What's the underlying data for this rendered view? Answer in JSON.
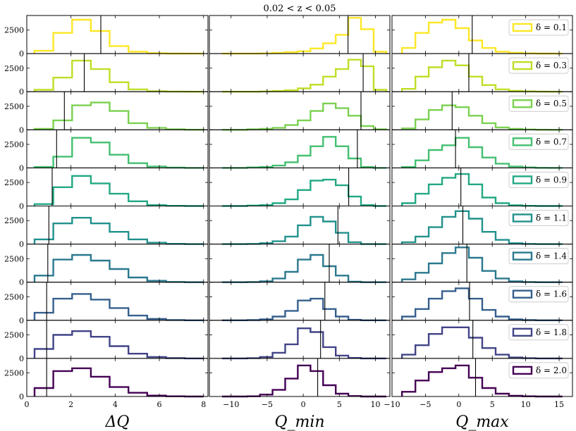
{
  "figure": {
    "title": "0.02 < z < 0.05"
  },
  "chart_data": {
    "type": "histogram-grid",
    "title": "0.02 < z < 0.05",
    "rows": [
      "δ = 0.1",
      "δ = 0.3",
      "δ = 0.5",
      "δ = 0.7",
      "δ = 0.9",
      "δ = 1.1",
      "δ = 1.4",
      "δ = 1.6",
      "δ = 1.8",
      "δ = 2.0"
    ],
    "row_colors": [
      "#fde725",
      "#bddf26",
      "#7ad151",
      "#44bf70",
      "#22a884",
      "#21918c",
      "#2a788e",
      "#355f8d",
      "#414487",
      "#440154"
    ],
    "y_ticks": [
      0,
      2500
    ],
    "panels": [
      {
        "xlabel": "ΔQ",
        "xlim": [
          0,
          8.2
        ],
        "x_ticks": [
          0,
          2,
          4,
          6,
          8
        ],
        "edges": [
          0.35,
          1.2,
          2.05,
          2.9,
          3.75,
          4.6,
          5.45,
          6.3,
          7.15,
          8.0
        ],
        "counts": [
          [
            300,
            2200,
            3600,
            2400,
            800,
            200,
            50,
            10,
            0
          ],
          [
            200,
            1500,
            3300,
            2400,
            1000,
            250,
            60,
            10,
            0
          ],
          [
            100,
            1000,
            2600,
            2900,
            2000,
            700,
            200,
            50,
            10
          ],
          [
            100,
            1200,
            3200,
            2700,
            1400,
            500,
            150,
            30,
            0
          ],
          [
            200,
            2000,
            3200,
            2400,
            1300,
            500,
            100,
            20,
            0
          ],
          [
            500,
            2200,
            2800,
            2200,
            1300,
            500,
            150,
            30,
            0
          ],
          [
            700,
            2400,
            2900,
            2300,
            1400,
            500,
            150,
            30,
            0
          ],
          [
            800,
            2300,
            2800,
            2200,
            1300,
            500,
            150,
            30,
            0
          ],
          [
            1000,
            2500,
            2900,
            2300,
            1300,
            500,
            150,
            30,
            0
          ],
          [
            900,
            2700,
            3000,
            2100,
            1000,
            400,
            100,
            20,
            0
          ]
        ],
        "medians": [
          3.35,
          2.6,
          1.7,
          1.35,
          1.15,
          1.0,
          0.95,
          0.9,
          0.9,
          0.9
        ]
      },
      {
        "xlabel": "Q_min",
        "xlim": [
          -13,
          12
        ],
        "x_ticks": [
          -10,
          -5,
          0,
          5,
          10
        ],
        "edges": [
          -11.25,
          -9.5,
          -7.75,
          -6.0,
          -4.25,
          -2.5,
          -0.75,
          1.0,
          2.75,
          4.5,
          6.25,
          8.0,
          9.75,
          11.5
        ],
        "counts": [
          [
            0,
            0,
            0,
            20,
            80,
            150,
            250,
            550,
            1100,
            2000,
            3800,
            2600,
            200
          ],
          [
            0,
            0,
            0,
            30,
            80,
            150,
            350,
            750,
            1600,
            2400,
            3400,
            2700,
            200
          ],
          [
            0,
            0,
            50,
            100,
            200,
            500,
            1000,
            2000,
            2800,
            2300,
            1500,
            400,
            50
          ],
          [
            0,
            0,
            50,
            100,
            250,
            600,
            1300,
            2300,
            3300,
            2300,
            1000,
            100,
            0
          ],
          [
            0,
            0,
            50,
            100,
            300,
            700,
            1700,
            2700,
            2800,
            2200,
            1000,
            100,
            0
          ],
          [
            0,
            0,
            20,
            100,
            300,
            800,
            2000,
            2900,
            2400,
            1200,
            200,
            0,
            0
          ],
          [
            0,
            0,
            20,
            100,
            400,
            1100,
            2400,
            2900,
            1700,
            700,
            50,
            0,
            0
          ],
          [
            0,
            0,
            20,
            100,
            400,
            1000,
            2100,
            2300,
            1200,
            400,
            50,
            0,
            0
          ],
          [
            0,
            0,
            20,
            150,
            600,
            1500,
            3200,
            2800,
            1200,
            300,
            50,
            0,
            0
          ],
          [
            0,
            0,
            20,
            200,
            700,
            1900,
            3300,
            2700,
            1200,
            300,
            50,
            0,
            0
          ]
        ],
        "medians": [
          6.2,
          8.3,
          8.0,
          7.5,
          6.3,
          4.8,
          3.6,
          3.0,
          2.4,
          2.0
        ]
      },
      {
        "xlabel": "Q_max",
        "xlim": [
          -10,
          17
        ],
        "x_ticks": [
          -10,
          -5,
          0,
          5,
          10,
          15
        ],
        "edges": [
          -8.5,
          -6.5,
          -4.5,
          -2.5,
          -0.5,
          1.5,
          3.5,
          5.5,
          7.5,
          9.5,
          11.5,
          13.5,
          15.5
        ],
        "counts": [
          [
            600,
            2200,
            3300,
            3600,
            2700,
            1400,
            600,
            200,
            80,
            30,
            10,
            0
          ],
          [
            300,
            1600,
            2600,
            3300,
            2800,
            1600,
            700,
            250,
            100,
            40,
            10,
            0
          ],
          [
            150,
            1100,
            2100,
            2600,
            2400,
            1500,
            700,
            250,
            100,
            40,
            10,
            0
          ],
          [
            100,
            800,
            1900,
            2400,
            3200,
            2200,
            1100,
            450,
            150,
            50,
            10,
            0
          ],
          [
            300,
            1300,
            2300,
            3000,
            3400,
            2300,
            900,
            300,
            80,
            20,
            0,
            0
          ],
          [
            200,
            800,
            1800,
            2900,
            3500,
            2700,
            1300,
            450,
            100,
            20,
            0,
            0
          ],
          [
            300,
            1000,
            2000,
            3100,
            3700,
            2600,
            1200,
            400,
            100,
            20,
            0,
            0
          ],
          [
            400,
            1200,
            2300,
            3100,
            3400,
            2300,
            1100,
            400,
            100,
            20,
            0,
            0
          ],
          [
            400,
            1400,
            2600,
            3300,
            3300,
            2200,
            1100,
            400,
            100,
            20,
            0,
            0
          ],
          [
            500,
            1700,
            2600,
            3000,
            3300,
            2000,
            900,
            300,
            80,
            20,
            0,
            0
          ]
        ],
        "medians": [
          2.0,
          1.5,
          -1.0,
          -0.5,
          0.3,
          0.6,
          1.2,
          1.6,
          2.1,
          2.5
        ]
      }
    ]
  }
}
